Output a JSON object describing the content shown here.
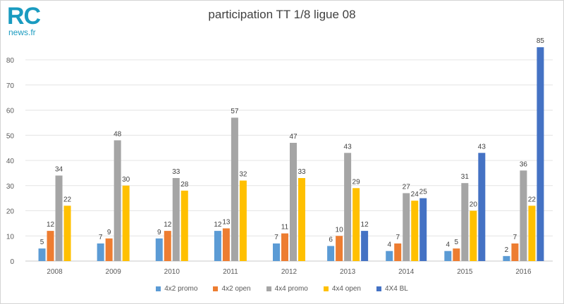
{
  "logo": {
    "main": "RC",
    "sub": "news.fr"
  },
  "chart_data": {
    "type": "bar",
    "title": "participation TT 1/8 ligue 08",
    "xlabel": "",
    "ylabel": "",
    "categories": [
      "2008",
      "2009",
      "2010",
      "2011",
      "2012",
      "2013",
      "2014",
      "2015",
      "2016"
    ],
    "ylim": [
      0,
      90
    ],
    "yticks": [
      0,
      10,
      20,
      30,
      40,
      50,
      60,
      70,
      80
    ],
    "grid": true,
    "legend_position": "bottom",
    "series": [
      {
        "name": "4x2 promo",
        "color": "#5b9bd5",
        "values": [
          5,
          7,
          9,
          12,
          7,
          6,
          4,
          4,
          2
        ]
      },
      {
        "name": "4x2 open",
        "color": "#ed7d31",
        "values": [
          12,
          9,
          12,
          13,
          11,
          10,
          7,
          5,
          7
        ]
      },
      {
        "name": "4x4 promo",
        "color": "#a5a5a5",
        "values": [
          34,
          48,
          33,
          57,
          47,
          43,
          27,
          31,
          36
        ]
      },
      {
        "name": "4x4 open",
        "color": "#ffc000",
        "values": [
          22,
          30,
          28,
          32,
          33,
          29,
          24,
          20,
          22
        ]
      },
      {
        "name": "4X4 BL",
        "color": "#4472c4",
        "values": [
          null,
          null,
          null,
          null,
          null,
          12,
          25,
          43,
          85
        ]
      }
    ]
  }
}
